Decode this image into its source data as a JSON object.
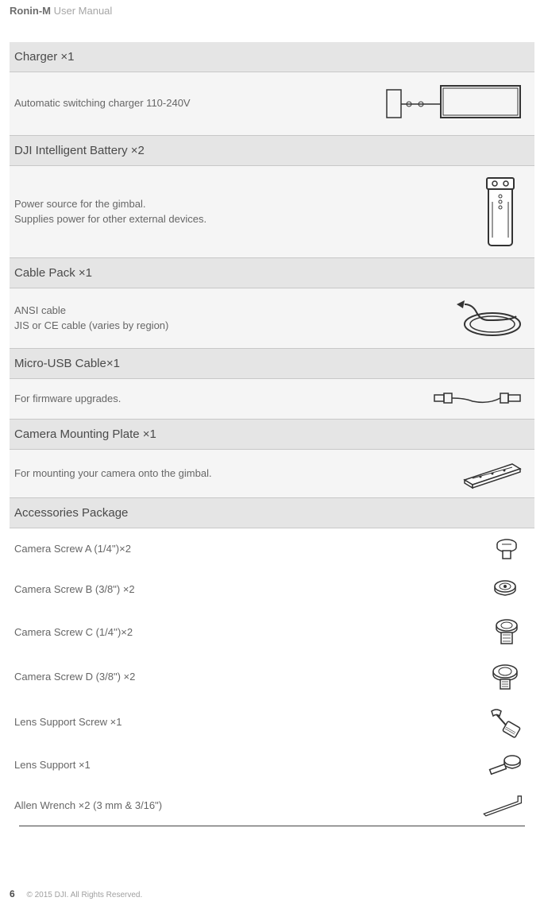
{
  "header": {
    "bold_part": "Ronin-M",
    "rest_part": " User Manual"
  },
  "sections": [
    {
      "title": "Charger ×1",
      "desc": "Automatic switching charger 110-240V"
    },
    {
      "title": "DJI Intelligent Battery ×2",
      "desc": "Power source for the gimbal.\nSupplies power for other external devices."
    },
    {
      "title": "Cable Pack ×1",
      "desc": "ANSI cable\nJIS or CE cable (varies by region)"
    },
    {
      "title": "Micro-USB Cable×1",
      "desc": "For firmware upgrades."
    },
    {
      "title": "Camera Mounting Plate ×1",
      "desc": "For mounting your camera onto the gimbal."
    },
    {
      "title": "Accessories Package"
    }
  ],
  "accessories": [
    {
      "label": "Camera Screw A (1/4'')×2"
    },
    {
      "label": "Camera Screw B (3/8\") ×2"
    },
    {
      "label": "Camera Screw C (1/4'')×2"
    },
    {
      "label": "Camera Screw D (3/8\") ×2"
    },
    {
      "label": "Lens Support Screw ×1"
    },
    {
      "label": "Lens Support ×1"
    },
    {
      "label": "Allen Wrench ×2 (3 mm & 3/16\")"
    }
  ],
  "footer": {
    "page": "6",
    "copyright": "© 2015 DJI. All Rights Reserved."
  },
  "colors": {
    "header_bg": "#e5e5e5",
    "body_bg": "#f5f5f5",
    "text_main": "#666666",
    "text_light": "#a6a6a6",
    "rule": "#c8c8c8"
  }
}
